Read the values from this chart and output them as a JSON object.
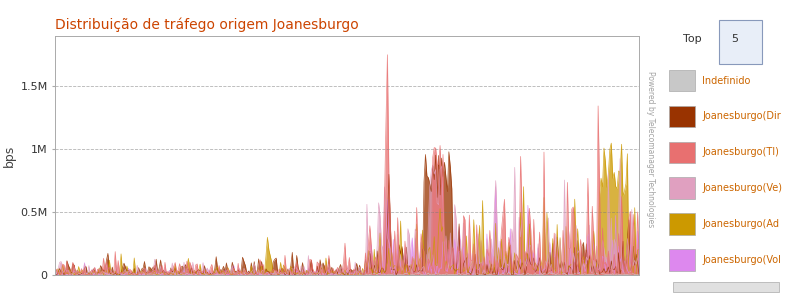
{
  "title": "Distribuição de tráfego origem Joanesburgo",
  "ylabel": "bps",
  "title_color": "#cc4400",
  "background_color": "#ffffff",
  "plot_bg_color": "#ffffff",
  "ylim": [
    0,
    1900000
  ],
  "yticks": [
    0,
    500000,
    1000000,
    1500000
  ],
  "ytick_labels": [
    "0",
    "0.5M",
    "1M",
    "1.5M"
  ],
  "n_points": 400,
  "series_colors": [
    "#c8c8c8",
    "#993300",
    "#e87070",
    "#e0a0c0",
    "#cc9900",
    "#dd88ee"
  ],
  "series_labels": [
    "Indefinido",
    "Joanesburgo(Dir",
    "Joanesburgo(TI)",
    "Joanesburgo(Ve)",
    "Joanesburgo(Ad",
    "Joanesburgo(Vol"
  ],
  "legend_title": "Top 5",
  "watermark": "Powered by Telecomanager Technologies",
  "grid_color": "#777777",
  "axis_color": "#aaaaaa",
  "figwidth": 7.89,
  "figheight": 2.99,
  "dpi": 100
}
